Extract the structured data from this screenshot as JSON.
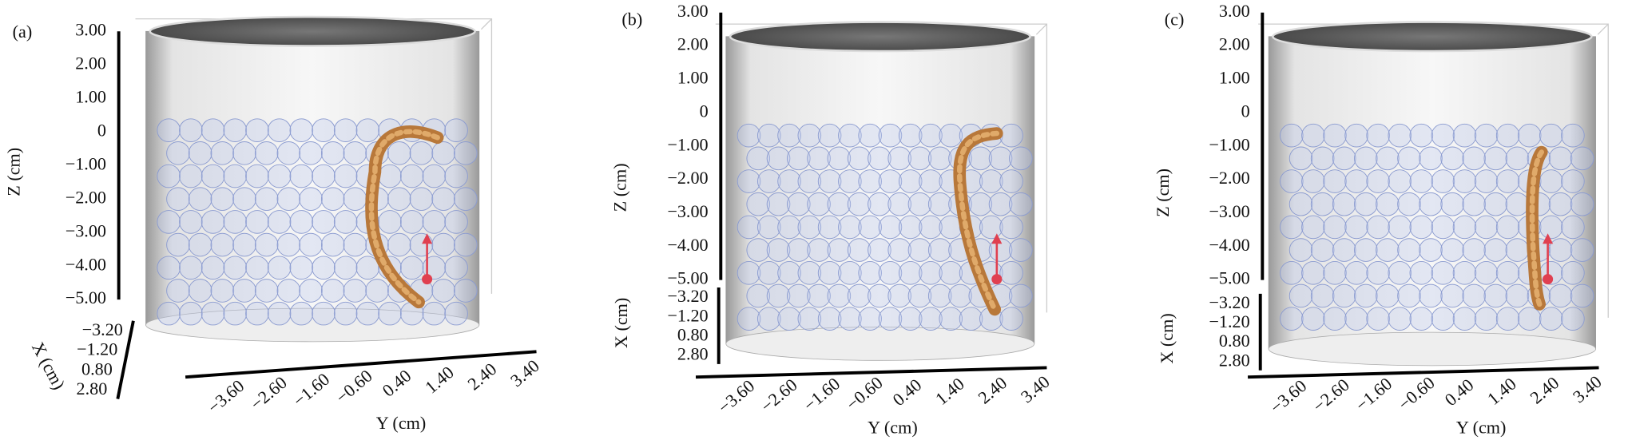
{
  "panels": [
    {
      "label": "(a)",
      "z_axis": {
        "label": "Z (cm)",
        "ticks": [
          "3.00",
          "2.00",
          "1.00",
          "0",
          "−1.00",
          "−2.00",
          "−3.00",
          "−4.00",
          "−5.00"
        ]
      },
      "x_axis": {
        "label": "X (cm)",
        "ticks": [
          "−3.20",
          "−1.20",
          "0.80",
          "2.80"
        ]
      },
      "y_axis": {
        "label": "Y (cm)",
        "ticks": [
          "−3.60",
          "−2.60",
          "−1.60",
          "−0.60",
          "0.40",
          "1.40",
          "2.40",
          "3.40"
        ]
      }
    },
    {
      "label": "(b)",
      "z_axis": {
        "label": "Z (cm)",
        "ticks": [
          "3.00",
          "2.00",
          "1.00",
          "0",
          "−1.00",
          "−2.00",
          "−3.00",
          "−4.00",
          "−5.00"
        ]
      },
      "x_axis": {
        "label": "X (cm)",
        "ticks": [
          "−3.20",
          "−1.20",
          "0.80",
          "2.80"
        ]
      },
      "y_axis": {
        "label": "Y (cm)",
        "ticks": [
          "−3.60",
          "−2.60",
          "−1.60",
          "−0.60",
          "0.40",
          "1.40",
          "2.40",
          "3.40"
        ]
      }
    },
    {
      "label": "(c)",
      "z_axis": {
        "label": "Z (cm)",
        "ticks": [
          "3.00",
          "2.00",
          "1.00",
          "0",
          "−1.00",
          "−2.00",
          "−3.00",
          "−4.00",
          "−5.00"
        ]
      },
      "x_axis": {
        "label": "X (cm)",
        "ticks": [
          "−3.20",
          "−1.20",
          "0.80",
          "2.80"
        ]
      },
      "y_axis": {
        "label": "Y (cm)",
        "ticks": [
          "−3.60",
          "−2.60",
          "−1.60",
          "−0.60",
          "0.40",
          "1.40",
          "2.40",
          "3.40"
        ]
      }
    }
  ]
}
